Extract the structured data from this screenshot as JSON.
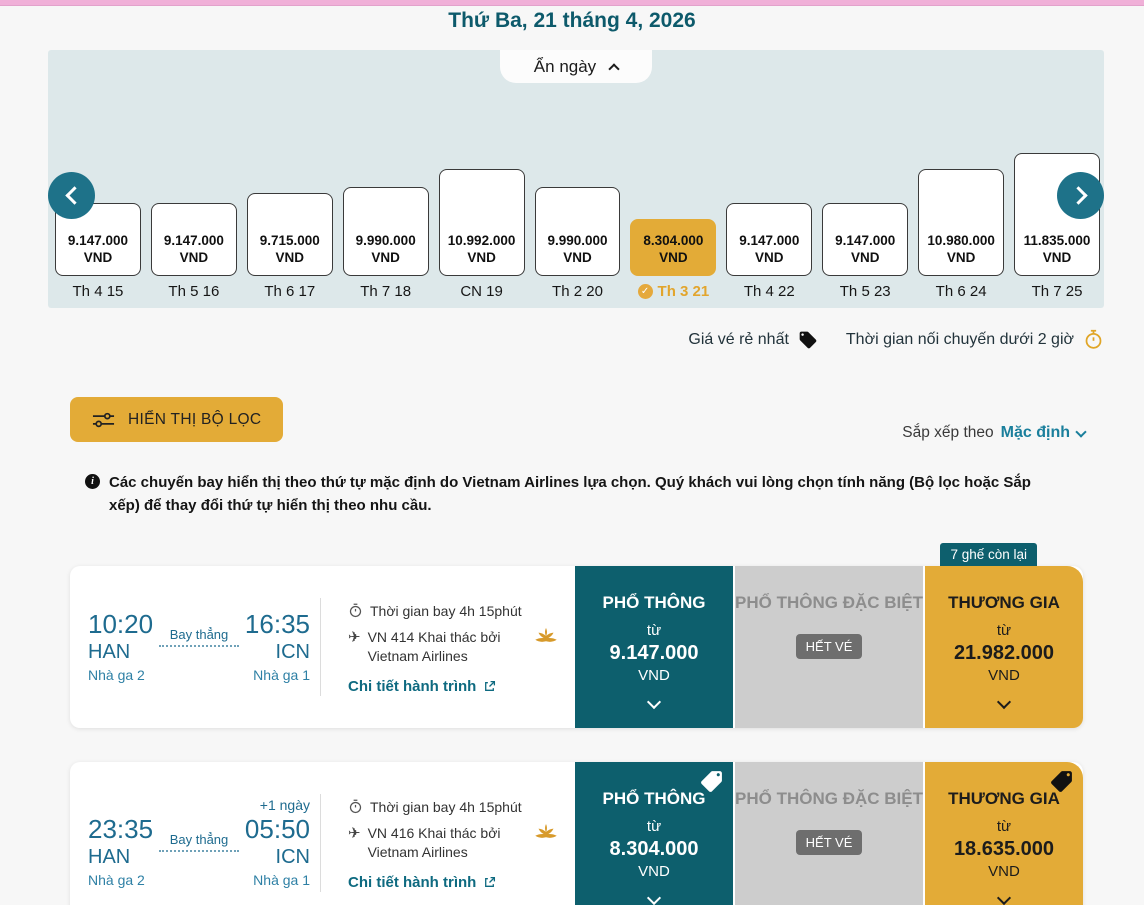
{
  "colors": {
    "brand_teal": "#0d5f6d",
    "brand_gold": "#e3ab37",
    "link_teal": "#0e6a80",
    "time_blue": "#1e6b8f",
    "panel_bg": "#dde8ea",
    "pink_bar": "#f0b0d8"
  },
  "header": {
    "date_title": "Thứ Ba, 21 tháng 4, 2026",
    "hide_days_label": "Ẩn ngày"
  },
  "carousel": {
    "currency": "VND",
    "days": [
      {
        "label": "Th 4 15",
        "price_display": "9.147.000",
        "currency": "VND",
        "price": 9147000,
        "selected": false
      },
      {
        "label": "Th 5 16",
        "price_display": "9.147.000",
        "currency": "VND",
        "price": 9147000,
        "selected": false
      },
      {
        "label": "Th 6 17",
        "price_display": "9.715.000",
        "currency": "VND",
        "price": 9715000,
        "selected": false
      },
      {
        "label": "Th 7 18",
        "price_display": "9.990.000",
        "currency": "VND",
        "price": 9990000,
        "selected": false
      },
      {
        "label": "CN 19",
        "price_display": "10.992.000",
        "currency": "VND",
        "price": 10992000,
        "selected": false
      },
      {
        "label": "Th 2 20",
        "price_display": "9.990.000",
        "currency": "VND",
        "price": 9990000,
        "selected": false
      },
      {
        "label": "Th 3 21",
        "price_display": "8.304.000",
        "currency": "VND",
        "price": 8304000,
        "selected": true
      },
      {
        "label": "Th 4 22",
        "price_display": "9.147.000",
        "currency": "VND",
        "price": 9147000,
        "selected": false
      },
      {
        "label": "Th 5 23",
        "price_display": "9.147.000",
        "currency": "VND",
        "price": 9147000,
        "selected": false
      },
      {
        "label": "Th 6 24",
        "price_display": "10.980.000",
        "currency": "VND",
        "price": 10980000,
        "selected": false
      },
      {
        "label": "Th 7 25",
        "price_display": "11.835.000",
        "currency": "VND",
        "price": 11835000,
        "selected": false
      }
    ]
  },
  "legend": {
    "cheapest_label": "Giá vé rẻ nhất",
    "connection_label": "Thời gian nối chuyến dưới 2 giờ"
  },
  "toolbar": {
    "filter_label": "HIỂN THỊ BỘ LỌC",
    "sort_prefix": "Sắp xếp theo",
    "sort_value": "Mặc định"
  },
  "notice": {
    "text": "Các chuyến bay hiển thị theo thứ tự mặc định do Vietnam Airlines lựa chọn. Quý khách vui lòng chọn tính năng (Bộ lọc hoặc Sắp xếp) để thay đổi thứ tự hiển thị theo nhu cầu."
  },
  "flights": [
    {
      "dep_time": "10:20",
      "dep_airport": "HAN",
      "dep_terminal": "Nhà ga 2",
      "stop_label": "Bay thẳng",
      "plus_day": "",
      "arr_time": "16:35",
      "arr_airport": "ICN",
      "arr_terminal": "Nhà ga 1",
      "duration": "Thời gian bay 4h 15phút",
      "flight_no": "VN 414 Khai thác bởi Vietnam Airlines",
      "details_label": "Chi tiết hành trình",
      "seats_badge": "7 ghế còn lại",
      "fares": [
        {
          "cabin": "PHỔ THÔNG",
          "from": "từ",
          "price": "9.147.000",
          "currency": "VND"
        },
        {
          "cabin": "PHỔ THÔNG ĐẶC BIỆT",
          "soldout": "HẾT VÉ"
        },
        {
          "cabin": "THƯƠNG GIA",
          "from": "từ",
          "price": "21.982.000",
          "currency": "VND"
        }
      ]
    },
    {
      "dep_time": "23:35",
      "dep_airport": "HAN",
      "dep_terminal": "Nhà ga 2",
      "stop_label": "Bay thẳng",
      "plus_day": "+1 ngày",
      "arr_time": "05:50",
      "arr_airport": "ICN",
      "arr_terminal": "Nhà ga 1",
      "duration": "Thời gian bay 4h 15phút",
      "flight_no": "VN 416 Khai thác bởi Vietnam Airlines",
      "details_label": "Chi tiết hành trình",
      "fares": [
        {
          "cabin": "PHỔ THÔNG",
          "from": "từ",
          "price": "8.304.000",
          "currency": "VND",
          "tag": true
        },
        {
          "cabin": "PHỔ THÔNG ĐẶC BIỆT",
          "soldout": "HẾT VÉ"
        },
        {
          "cabin": "THƯƠNG GIA",
          "from": "từ",
          "price": "18.635.000",
          "currency": "VND",
          "tag": true
        }
      ]
    }
  ]
}
